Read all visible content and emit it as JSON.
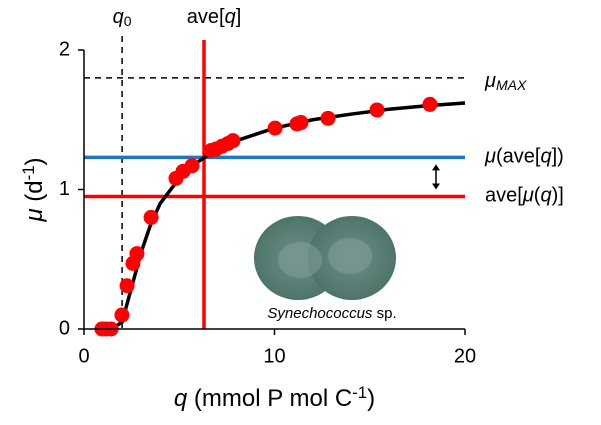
{
  "chart_data": {
    "type": "scatter",
    "xlim": [
      0,
      20
    ],
    "xticks": [
      0,
      10,
      20
    ],
    "ylim": [
      0,
      2
    ],
    "yticks": [
      0,
      1,
      2
    ],
    "x_label": [
      {
        "text": "q",
        "style": "italic"
      },
      {
        "text": " (mmol P mol C",
        "style": "normal"
      },
      {
        "text": "-1",
        "style": "sup"
      },
      {
        "text": ")",
        "style": "normal"
      }
    ],
    "y_label": [
      {
        "text": "μ",
        "style": "italic"
      },
      {
        "text": " (d",
        "style": "normal"
      },
      {
        "text": "-1",
        "style": "sup"
      },
      {
        "text": ")",
        "style": "normal"
      }
    ],
    "points": {
      "color": "#ff0000",
      "x": [
        0.94,
        1.15,
        1.42,
        1.99,
        2.26,
        2.57,
        2.78,
        3.52,
        4.83,
        5.2,
        5.67,
        6.67,
        6.93,
        7.24,
        7.56,
        7.82,
        10.03,
        11.18,
        11.39,
        12.81,
        15.38,
        18.16
      ],
      "y": [
        0,
        0,
        0,
        0.1,
        0.31,
        0.47,
        0.54,
        0.8,
        1.08,
        1.13,
        1.17,
        1.28,
        1.29,
        1.31,
        1.33,
        1.35,
        1.44,
        1.47,
        1.48,
        1.51,
        1.57,
        1.61
      ]
    },
    "curve": {
      "color": "#000000",
      "x": [
        1,
        1.5,
        2,
        2.5,
        3,
        3.5,
        4,
        5,
        6,
        7,
        8,
        10,
        12,
        14,
        16,
        18,
        20
      ],
      "y": [
        0,
        0.005,
        0.05,
        0.3,
        0.55,
        0.75,
        0.9,
        1.08,
        1.2,
        1.29,
        1.35,
        1.44,
        1.5,
        1.54,
        1.575,
        1.6,
        1.62
      ]
    },
    "reference_lines": [
      {
        "axis": "x",
        "value": 2,
        "color": "#000000",
        "dashed": true,
        "label": [
          {
            "text": "q",
            "style": "italic"
          },
          {
            "text": "0",
            "style": "sub"
          }
        ]
      },
      {
        "axis": "x",
        "value": 6.3,
        "color": "#ff0000",
        "dashed": false,
        "label": [
          {
            "text": "ave[",
            "style": "normal"
          },
          {
            "text": "q",
            "style": "italic"
          },
          {
            "text": "]",
            "style": "normal"
          }
        ]
      },
      {
        "axis": "y",
        "value": 1.8,
        "color": "#000000",
        "dashed": true,
        "label": [
          {
            "text": "μ",
            "style": "italic"
          },
          {
            "text": "MAX",
            "style": "sub-italic"
          }
        ]
      },
      {
        "axis": "y",
        "value": 1.23,
        "color": "#1f77c4",
        "dashed": false,
        "label": [
          {
            "text": "μ",
            "style": "italic"
          },
          {
            "text": "(ave[",
            "style": "normal"
          },
          {
            "text": "q",
            "style": "italic"
          },
          {
            "text": "])",
            "style": "normal"
          }
        ]
      },
      {
        "axis": "y",
        "value": 0.95,
        "color": "#ff0000",
        "dashed": false,
        "label": [
          {
            "text": "ave[",
            "style": "normal"
          },
          {
            "text": "μ",
            "style": "italic"
          },
          {
            "text": "(",
            "style": "normal"
          },
          {
            "text": "q",
            "style": "italic"
          },
          {
            "text": ")]",
            "style": "normal"
          }
        ]
      }
    ],
    "image_caption": [
      {
        "text": "Synechococcus",
        "style": "italic"
      },
      {
        "text": " sp.",
        "style": "normal"
      }
    ]
  }
}
